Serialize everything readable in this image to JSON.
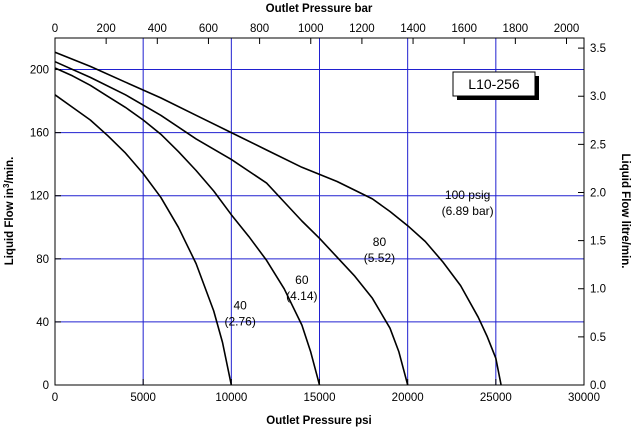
{
  "chart_data": {
    "type": "line",
    "title": "",
    "model_label": "L10-256",
    "x_bottom": {
      "label": "Outlet Pressure psi",
      "range": [
        0,
        30000
      ],
      "ticks": [
        0,
        5000,
        10000,
        15000,
        20000,
        25000,
        30000
      ]
    },
    "x_top": {
      "label": "Outlet Pressure bar",
      "range": [
        0,
        2068.4
      ],
      "ticks": [
        0,
        200,
        400,
        600,
        800,
        1000,
        1200,
        1400,
        1600,
        1800,
        2000
      ]
    },
    "y_left": {
      "label_prefix": "Liquid Flow in",
      "label_sup": "3",
      "label_suffix": "/min.",
      "range": [
        0,
        220
      ],
      "ticks": [
        0,
        40,
        80,
        120,
        160,
        200
      ]
    },
    "y_right": {
      "label": "Liquid Flow litre/min.",
      "range": [
        0,
        3.605
      ],
      "ticks": [
        "0.0",
        "0.5",
        "1.0",
        "1.5",
        "2.0",
        "2.5",
        "3.0",
        "3.5"
      ]
    },
    "vertical_reference_lines_psi": [
      5000,
      10000,
      15000,
      20000,
      25000
    ],
    "horizontal_reference_lines_in3": [
      40,
      80,
      120,
      160,
      200
    ],
    "series": [
      {
        "name": "40",
        "annotation": [
          "40",
          "(2.76)"
        ],
        "x": [
          0,
          1000,
          2000,
          3000,
          4000,
          5000,
          6000,
          7000,
          8000,
          9000,
          9500,
          10000
        ],
        "y": [
          184,
          176,
          168,
          158,
          147,
          134,
          119,
          100,
          77,
          47,
          27,
          0
        ]
      },
      {
        "name": "60",
        "annotation": [
          "60",
          "(4.14)"
        ],
        "x": [
          0,
          1000,
          2000,
          3000,
          4000,
          5000,
          6000,
          7000,
          8000,
          9000,
          10000,
          11000,
          12000,
          13000,
          14000,
          14500,
          15000
        ],
        "y": [
          201,
          196,
          190,
          183,
          176,
          168,
          159,
          148,
          136,
          123,
          108,
          94,
          79,
          61,
          38,
          21,
          0
        ]
      },
      {
        "name": "80",
        "annotation": [
          "80",
          "(5.52)"
        ],
        "x": [
          0,
          2000,
          4000,
          6000,
          8000,
          10000,
          12000,
          13000,
          14000,
          15000,
          16000,
          17000,
          18000,
          19000,
          19500,
          20000
        ],
        "y": [
          205,
          195,
          184,
          171,
          156,
          143,
          128,
          116,
          104,
          93,
          81,
          69,
          55,
          36,
          21,
          0
        ]
      },
      {
        "name": "100 psig",
        "annotation": [
          "100 psig",
          "(6.89 bar)"
        ],
        "x": [
          0,
          2000,
          4000,
          6000,
          8000,
          10000,
          12000,
          14000,
          16000,
          18000,
          19000,
          20000,
          21000,
          22000,
          23000,
          24000,
          24500,
          25000,
          25300
        ],
        "y": [
          211,
          202,
          192,
          182,
          171,
          160,
          149,
          138,
          129,
          118,
          110,
          101,
          91,
          78,
          63,
          43,
          31,
          17,
          0
        ]
      }
    ]
  }
}
